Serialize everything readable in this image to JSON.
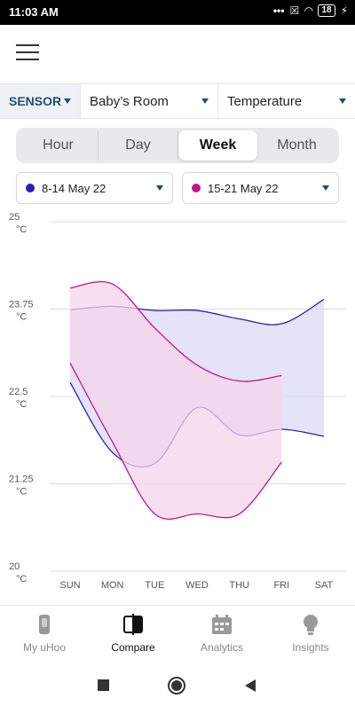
{
  "status": {
    "time": "11:03 AM",
    "dots": "•••",
    "battery": "18"
  },
  "selectors": {
    "sensor": "SENSOR",
    "room": "Baby’s Room",
    "metric": "Temperature"
  },
  "tabs": [
    "Hour",
    "Day",
    "Week",
    "Month"
  ],
  "active_tab": "Week",
  "ranges": [
    {
      "label": "8-14 May 22",
      "color": "#2a1fb0"
    },
    {
      "label": "15-21 May 22",
      "color": "#c0168c"
    }
  ],
  "nav": [
    {
      "label": "My uHoo",
      "icon": "sensor-device-icon"
    },
    {
      "label": "Compare",
      "icon": "compare-icon"
    },
    {
      "label": "Analytics",
      "icon": "calendar-icon"
    },
    {
      "label": "Insights",
      "icon": "lightbulb-icon"
    }
  ],
  "chart_data": {
    "type": "area",
    "categories": [
      "SUN",
      "MON",
      "TUE",
      "WED",
      "THU",
      "FRI",
      "SAT"
    ],
    "y_ticks": [
      {
        "value": 25,
        "label": "25",
        "unit": "°C"
      },
      {
        "value": 23.75,
        "label": "23.75",
        "unit": "°C"
      },
      {
        "value": 22.5,
        "label": "22.5",
        "unit": "°C"
      },
      {
        "value": 21.25,
        "label": "21.25",
        "unit": "°C"
      },
      {
        "value": 20,
        "label": "20",
        "unit": "°C"
      }
    ],
    "ylim": [
      20,
      25
    ],
    "grid": true,
    "series": [
      {
        "color": "#2a1fb0",
        "fill": "#dcd9f4",
        "max": [
          23.74,
          23.79,
          23.73,
          23.73,
          23.61,
          23.54,
          23.89
        ],
        "min": [
          22.7,
          21.7,
          21.54,
          22.34,
          21.95,
          22.03,
          21.93
        ]
      },
      {
        "color": "#c0168c",
        "fill": "#f6d4eb",
        "max": [
          24.05,
          24.11,
          23.48,
          22.95,
          22.72,
          22.8,
          null
        ],
        "min": [
          22.98,
          21.85,
          20.82,
          20.82,
          20.82,
          21.56,
          null
        ]
      }
    ]
  }
}
